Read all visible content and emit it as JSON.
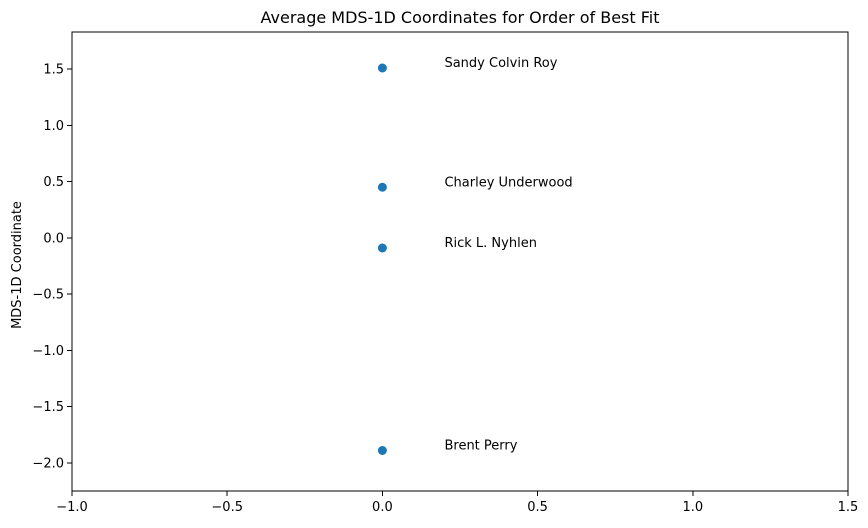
{
  "chart_data": {
    "type": "scatter",
    "title": "Average MDS-1D Coordinates for Order of Best Fit",
    "xlabel": "",
    "ylabel": "MDS-1D Coordinate",
    "xlim": [
      -1.0,
      1.5
    ],
    "ylim": [
      -2.25,
      1.83
    ],
    "x_ticks": [
      "−1.0",
      "−0.5",
      "0.0",
      "0.5",
      "1.0",
      "1.5"
    ],
    "x_tick_values": [
      -1.0,
      -0.5,
      0.0,
      0.5,
      1.0,
      1.5
    ],
    "y_ticks": [
      "1.5",
      "1.0",
      "0.5",
      "0.0",
      "−0.5",
      "−1.0",
      "−1.5",
      "−2.0"
    ],
    "y_tick_values": [
      1.5,
      1.0,
      0.5,
      0.0,
      -0.5,
      -1.0,
      -1.5,
      -2.0
    ],
    "grid": false,
    "marker_color": "#1f77b4",
    "points": [
      {
        "label": "Sandy Colvin Roy",
        "x": 0.0,
        "y": 1.51
      },
      {
        "label": "Charley Underwood",
        "x": 0.0,
        "y": 0.45
      },
      {
        "label": "Rick L. Nyhlen",
        "x": 0.0,
        "y": -0.09
      },
      {
        "label": "Brent Perry",
        "x": 0.0,
        "y": -1.89
      }
    ],
    "label_x": 0.2
  }
}
